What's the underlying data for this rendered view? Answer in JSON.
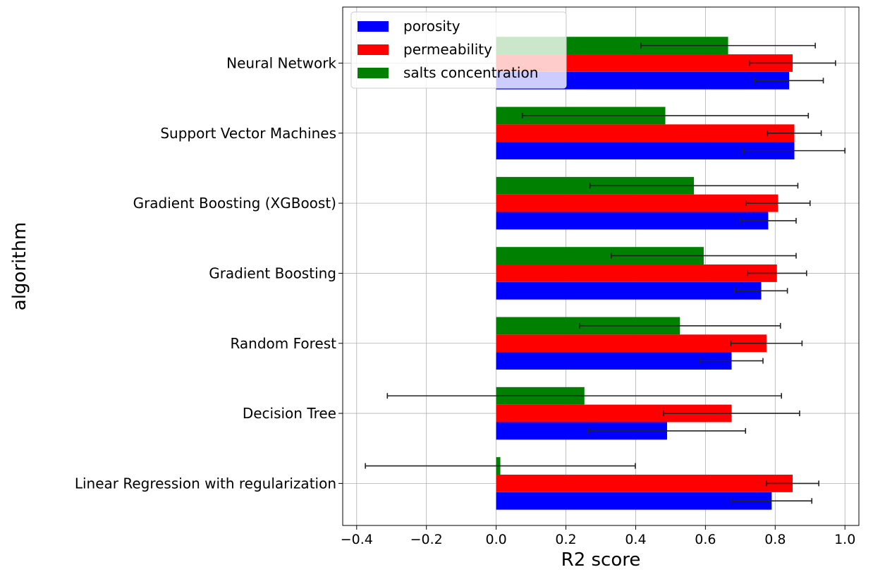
{
  "chart_data": {
    "type": "bar",
    "orientation": "horizontal",
    "xlabel": "R2 score",
    "ylabel": "algorithm",
    "xlim": [
      -0.44,
      1.04
    ],
    "xticks": [
      -0.4,
      -0.2,
      0.0,
      0.2,
      0.4,
      0.6,
      0.8,
      1.0
    ],
    "xtick_labels": [
      "−0.4",
      "−0.2",
      "0.0",
      "0.2",
      "0.4",
      "0.6",
      "0.8",
      "1.0"
    ],
    "grid": true,
    "legend_position": "top-left",
    "categories": [
      "Linear Regression with regularization",
      "Decision Tree",
      "Random Forest",
      "Gradient Boosting",
      "Gradient Boosting (XGBoost)",
      "Support Vector Machines",
      "Neural Network"
    ],
    "series": [
      {
        "name": "porosity",
        "color": "#0000ff",
        "values": [
          0.79,
          0.49,
          0.675,
          0.76,
          0.78,
          0.855,
          0.84
        ],
        "errors": [
          0.115,
          0.225,
          0.09,
          0.075,
          0.08,
          0.145,
          0.098
        ]
      },
      {
        "name": "permeability",
        "color": "#ff0000",
        "values": [
          0.85,
          0.675,
          0.775,
          0.805,
          0.808,
          0.855,
          0.85
        ],
        "errors": [
          0.075,
          0.195,
          0.102,
          0.085,
          0.092,
          0.077,
          0.123
        ]
      },
      {
        "name": "salts concentration",
        "color": "#008000",
        "values": [
          0.012,
          0.253,
          0.527,
          0.595,
          0.567,
          0.485,
          0.665
        ],
        "errors": [
          0.387,
          0.565,
          0.288,
          0.265,
          0.298,
          0.41,
          0.25
        ]
      }
    ]
  }
}
